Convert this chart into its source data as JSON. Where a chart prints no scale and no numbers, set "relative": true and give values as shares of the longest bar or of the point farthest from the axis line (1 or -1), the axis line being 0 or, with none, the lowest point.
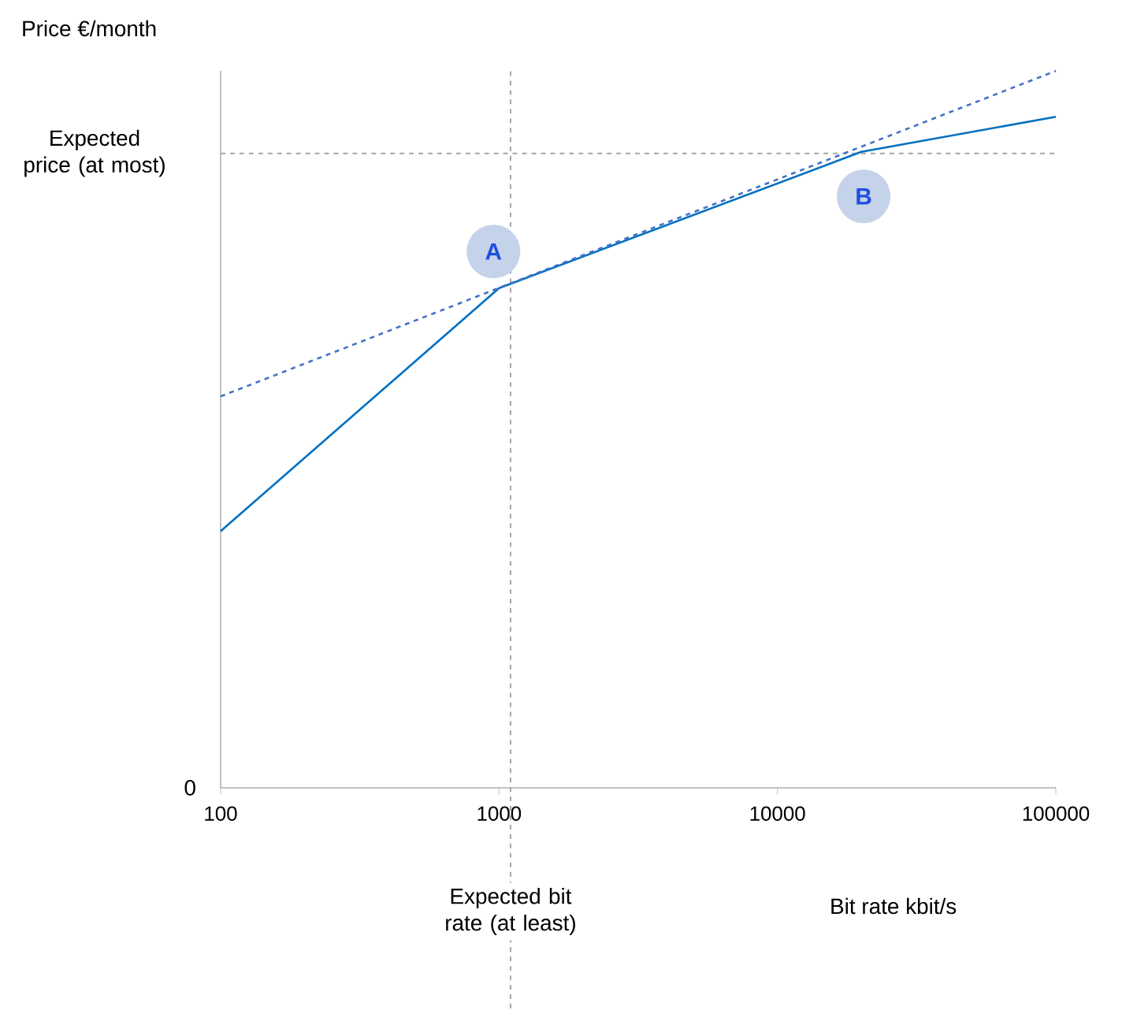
{
  "chart_data": {
    "type": "line",
    "relative": true,
    "log": "x",
    "ylabel": "Price €/month",
    "xlabel": "Bit rate kbit/s",
    "xlim": [
      100,
      100000
    ],
    "xticks": [
      100,
      1000,
      10000,
      100000
    ],
    "series": [
      {
        "color": "#0070c0",
        "line_style": "solid",
        "x": [
          100,
          1000,
          20000,
          100000
        ],
        "values": [
          0.358,
          0.697,
          0.887,
          0.936
        ]
      },
      {
        "color": "#4472c4",
        "line_style": "dashed",
        "x": [
          100,
          100000
        ],
        "values": [
          0.546,
          1.0
        ]
      }
    ],
    "ref_lines": [
      {
        "axis": "y",
        "value": 0.885,
        "label": "Expected price (at most)",
        "color": "#a6a6a6",
        "line_style": "dashed"
      },
      {
        "axis": "x",
        "value": 1100,
        "label": "Expected bit rate (at least)",
        "color": "#a6a6a6",
        "line_style": "dashed"
      }
    ],
    "annotations": [
      {
        "text": "A",
        "x": 955,
        "y": 0.748
      },
      {
        "text": "B",
        "x": 20400,
        "y": 0.825
      },
      "0"
    ]
  }
}
